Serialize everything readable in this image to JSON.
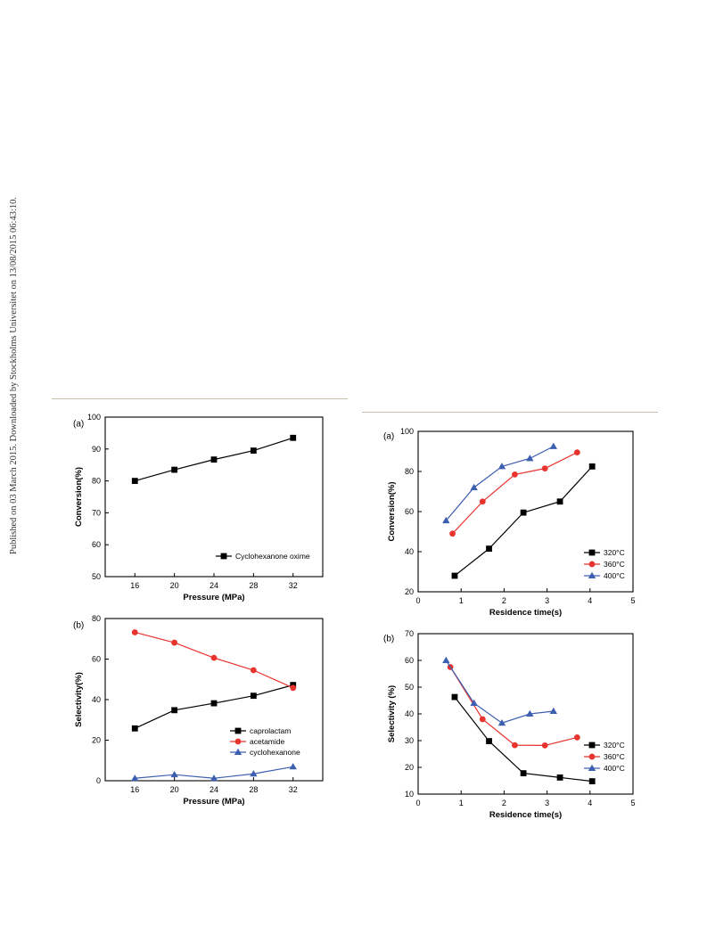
{
  "side_note": "Published on 03 March 2015. Downloaded by Stockholms Universitet on 13/08/2015 06:43:10.",
  "chart_data": [
    {
      "id": "left-a",
      "panel_label": "(a)",
      "type": "line",
      "xlabel": "Pressure (MPa)",
      "ylabel": "Conversion(%)",
      "xlim": [
        13,
        35
      ],
      "ylim": [
        50,
        100
      ],
      "xticks": [
        16,
        20,
        24,
        28,
        32
      ],
      "yticks": [
        50,
        60,
        70,
        80,
        90,
        100
      ],
      "legend_position": "bottom-right",
      "series": [
        {
          "name": "Cyclohexanone oxime",
          "color": "#000000",
          "marker": "square",
          "x": [
            16,
            20,
            24,
            28,
            32
          ],
          "y": [
            80,
            83.5,
            86.7,
            89.5,
            93.5
          ]
        }
      ]
    },
    {
      "id": "left-b",
      "panel_label": "(b)",
      "type": "line",
      "xlabel": "Pressure (MPa)",
      "ylabel": "Selectivity(%)",
      "xlim": [
        13,
        35
      ],
      "ylim": [
        0,
        80
      ],
      "xticks": [
        16,
        20,
        24,
        28,
        32
      ],
      "yticks": [
        0,
        20,
        40,
        60,
        80
      ],
      "legend_position": "bottom-right",
      "series": [
        {
          "name": "caprolactam",
          "color": "#000000",
          "marker": "square",
          "x": [
            16,
            20,
            24,
            28,
            32
          ],
          "y": [
            25.8,
            34.8,
            38.2,
            41.9,
            47.2
          ]
        },
        {
          "name": "acetamide",
          "color": "#e8332e",
          "marker": "circle",
          "x": [
            16,
            20,
            24,
            28,
            32
          ],
          "y": [
            73.2,
            68.1,
            60.6,
            54.5,
            45.8
          ]
        },
        {
          "name": "cyclohexanone",
          "color": "#3d5fb0",
          "marker": "triangle",
          "x": [
            16,
            20,
            24,
            28,
            32
          ],
          "y": [
            1.2,
            3.0,
            1.2,
            3.4,
            6.9
          ]
        }
      ]
    },
    {
      "id": "right-a",
      "panel_label": "(a)",
      "type": "line",
      "xlabel": "Residence time(s)",
      "ylabel": "Conversion(%)",
      "xlim": [
        0,
        5
      ],
      "ylim": [
        20,
        100
      ],
      "xticks": [
        0,
        1,
        2,
        3,
        4,
        5
      ],
      "yticks": [
        20,
        40,
        60,
        80,
        100
      ],
      "legend_position": "bottom-right",
      "series": [
        {
          "name": "320°C",
          "color": "#000000",
          "marker": "square",
          "x": [
            0.85,
            1.65,
            2.45,
            3.3,
            4.05
          ],
          "y": [
            28,
            41.5,
            59.5,
            65,
            82.5
          ]
        },
        {
          "name": "360°C",
          "color": "#e8332e",
          "marker": "circle",
          "x": [
            0.8,
            1.5,
            2.25,
            2.95,
            3.7
          ],
          "y": [
            49,
            65,
            78.5,
            81.5,
            89.5
          ]
        },
        {
          "name": "400°C",
          "color": "#3d5fb0",
          "marker": "triangle",
          "x": [
            0.65,
            1.3,
            1.95,
            2.6,
            3.15
          ],
          "y": [
            55.5,
            72,
            82.5,
            86.5,
            92.5
          ]
        }
      ]
    },
    {
      "id": "right-b",
      "panel_label": "(b)",
      "type": "line",
      "xlabel": "Residence time(s)",
      "ylabel": "Selectivity (%)",
      "xlim": [
        0,
        5
      ],
      "ylim": [
        10,
        70
      ],
      "xticks": [
        0,
        1,
        2,
        3,
        4,
        5
      ],
      "yticks": [
        10,
        20,
        30,
        40,
        50,
        60,
        70
      ],
      "legend_position": "bottom-right",
      "series": [
        {
          "name": "320°C",
          "color": "#000000",
          "marker": "square",
          "x": [
            0.85,
            1.65,
            2.45,
            3.3,
            4.05
          ],
          "y": [
            46.3,
            29.8,
            17.8,
            16.2,
            14.8
          ]
        },
        {
          "name": "360°C",
          "color": "#e8332e",
          "marker": "circle",
          "x": [
            0.75,
            1.5,
            2.25,
            2.95,
            3.7
          ],
          "y": [
            57.5,
            38,
            28.3,
            28.2,
            31.2
          ]
        },
        {
          "name": "400°C",
          "color": "#3d5fb0",
          "marker": "triangle",
          "x": [
            0.65,
            1.3,
            1.95,
            2.6,
            3.15
          ],
          "y": [
            60,
            44,
            36.6,
            40,
            41
          ]
        }
      ]
    }
  ]
}
